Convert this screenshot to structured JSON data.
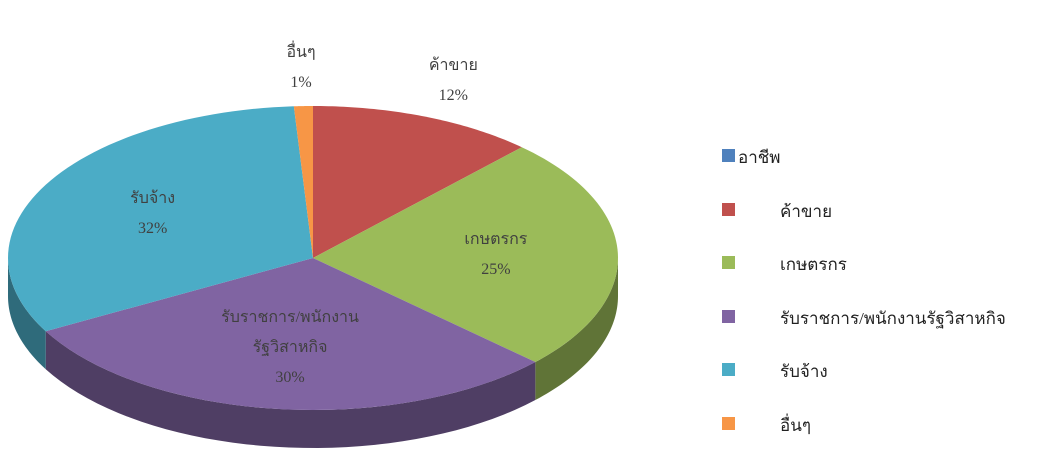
{
  "chart_data": {
    "type": "pie3d",
    "legend_title": "อาชีพ",
    "legend_title_color": "#4f81bd",
    "legend": "right",
    "categories": [
      "ค้าขาย",
      "เกษตรกร",
      "รับราชการ/พนักงานรัฐวิสาหกิจ",
      "รับจ้าง",
      "อื่นๆ"
    ],
    "values": [
      12,
      25,
      30,
      32,
      1
    ],
    "value_labels": [
      "12%",
      "25%",
      "30%",
      "32%",
      "1%"
    ],
    "colors": [
      "#c0504d",
      "#9bbb59",
      "#8064a2",
      "#4bacc6",
      "#f79646"
    ]
  }
}
